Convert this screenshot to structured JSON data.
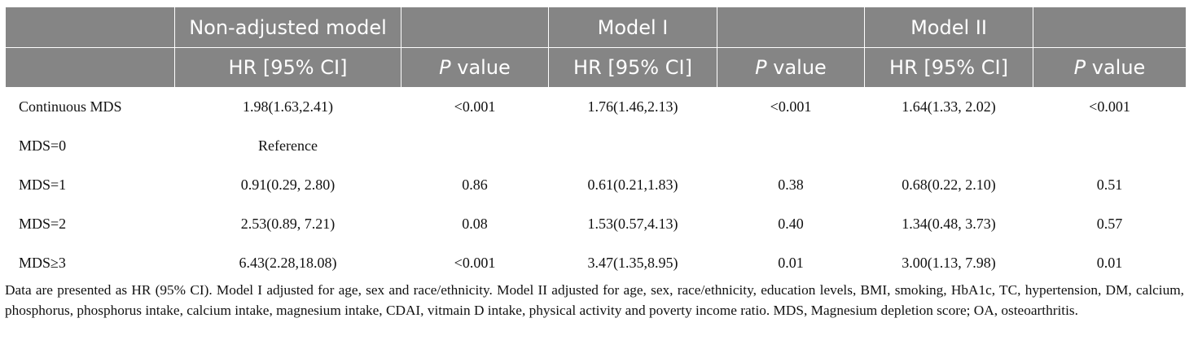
{
  "header": {
    "groups": [
      "Non-adjusted model",
      "Model I",
      "Model II"
    ],
    "hr_label": "HR [95% CI]",
    "p_italic": "P",
    "p_rest": " value"
  },
  "rows": [
    {
      "label": "Continuous MDS",
      "cells": [
        "1.98(1.63,2.41)",
        "<0.001",
        "1.76(1.46,2.13)",
        "<0.001",
        "1.64(1.33, 2.02)",
        "<0.001"
      ]
    },
    {
      "label": "MDS=0",
      "cells": [
        "Reference",
        "",
        "",
        "",
        "",
        ""
      ]
    },
    {
      "label": "MDS=1",
      "cells": [
        "0.91(0.29, 2.80)",
        "0.86",
        "0.61(0.21,1.83)",
        "0.38",
        "0.68(0.22, 2.10)",
        "0.51"
      ]
    },
    {
      "label": "MDS=2",
      "cells": [
        "2.53(0.89, 7.21)",
        "0.08",
        "1.53(0.57,4.13)",
        "0.40",
        "1.34(0.48, 3.73)",
        "0.57"
      ]
    },
    {
      "label": "MDS≥3",
      "cells": [
        "6.43(2.28,18.08)",
        "<0.001",
        "3.47(1.35,8.95)",
        "0.01",
        "3.00(1.13, 7.98)",
        "0.01"
      ]
    }
  ],
  "footnote": "Data are presented as HR (95% CI). Model I adjusted for age, sex and race/ethnicity. Model II adjusted for age, sex, race/ethnicity, education levels, BMI, smoking, HbA1c, TC, hypertension, DM, calcium, phosphorus, phosphorus intake, calcium intake, magnesium intake, CDAI, vitmain D intake, physical activity and poverty income ratio. MDS, Magnesium depletion score; OA, osteoarthritis."
}
